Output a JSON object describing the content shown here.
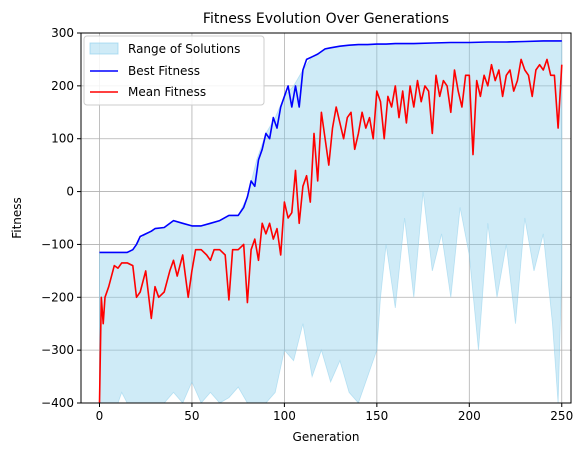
{
  "chart_data": {
    "type": "line",
    "title": "Fitness Evolution Over Generations",
    "xlabel": "Generation",
    "ylabel": "Fitness",
    "xlim": [
      -10,
      255
    ],
    "ylim": [
      -400,
      300
    ],
    "xticks": [
      0,
      50,
      100,
      150,
      200,
      250
    ],
    "yticks": [
      -400,
      -300,
      -200,
      -100,
      0,
      100,
      200,
      300
    ],
    "grid": true,
    "legend_position": "top-left",
    "legend": [
      "Range of Solutions",
      "Best Fitness",
      "Mean Fitness"
    ],
    "colors": {
      "range_fill": "#87CEEB",
      "range_edge": "#87CEEB",
      "best": "#0000ff",
      "mean": "#ff0000",
      "grid": "#b0b0b0"
    },
    "series": [
      {
        "name": "Best Fitness",
        "kind": "line",
        "x": [
          0,
          5,
          10,
          15,
          18,
          20,
          22,
          25,
          28,
          30,
          35,
          40,
          45,
          50,
          55,
          60,
          65,
          70,
          75,
          78,
          80,
          82,
          84,
          86,
          88,
          90,
          92,
          94,
          96,
          98,
          100,
          102,
          104,
          106,
          108,
          110,
          112,
          115,
          118,
          120,
          122,
          125,
          130,
          135,
          140,
          145,
          150,
          155,
          160,
          170,
          180,
          190,
          200,
          210,
          220,
          230,
          240,
          250
        ],
        "y": [
          -115,
          -115,
          -115,
          -115,
          -110,
          -100,
          -85,
          -80,
          -75,
          -70,
          -68,
          -55,
          -60,
          -65,
          -65,
          -60,
          -55,
          -45,
          -45,
          -30,
          -10,
          20,
          10,
          60,
          80,
          110,
          100,
          140,
          120,
          160,
          180,
          200,
          160,
          200,
          160,
          230,
          250,
          255,
          260,
          265,
          270,
          272,
          275,
          277,
          278,
          278,
          279,
          279,
          280,
          280,
          281,
          282,
          282,
          283,
          283,
          284,
          285,
          285
        ]
      },
      {
        "name": "Mean Fitness",
        "kind": "line",
        "x": [
          0,
          1,
          2,
          3,
          5,
          8,
          10,
          12,
          15,
          18,
          20,
          22,
          25,
          28,
          30,
          32,
          35,
          38,
          40,
          42,
          45,
          48,
          50,
          52,
          55,
          58,
          60,
          62,
          65,
          68,
          70,
          72,
          75,
          78,
          80,
          82,
          84,
          86,
          88,
          90,
          92,
          94,
          96,
          98,
          100,
          102,
          104,
          106,
          108,
          110,
          112,
          114,
          116,
          118,
          120,
          122,
          124,
          126,
          128,
          130,
          132,
          134,
          136,
          138,
          140,
          142,
          144,
          146,
          148,
          150,
          152,
          154,
          156,
          158,
          160,
          162,
          164,
          166,
          168,
          170,
          172,
          174,
          176,
          178,
          180,
          182,
          184,
          186,
          188,
          190,
          192,
          194,
          196,
          198,
          200,
          202,
          204,
          206,
          208,
          210,
          212,
          214,
          216,
          218,
          220,
          222,
          224,
          226,
          228,
          230,
          232,
          234,
          236,
          238,
          240,
          242,
          244,
          246,
          248,
          250
        ],
        "y": [
          -400,
          -200,
          -250,
          -200,
          -180,
          -140,
          -145,
          -135,
          -135,
          -140,
          -200,
          -190,
          -150,
          -240,
          -180,
          -200,
          -190,
          -150,
          -130,
          -160,
          -120,
          -200,
          -150,
          -110,
          -110,
          -120,
          -130,
          -110,
          -110,
          -120,
          -205,
          -110,
          -110,
          -100,
          -210,
          -110,
          -90,
          -130,
          -60,
          -80,
          -60,
          -90,
          -70,
          -120,
          -20,
          -50,
          -40,
          40,
          -60,
          10,
          30,
          -20,
          110,
          20,
          150,
          100,
          50,
          120,
          160,
          130,
          100,
          140,
          150,
          80,
          110,
          150,
          120,
          140,
          100,
          190,
          170,
          100,
          180,
          160,
          200,
          140,
          190,
          130,
          200,
          160,
          210,
          170,
          200,
          190,
          110,
          220,
          180,
          210,
          200,
          150,
          230,
          190,
          160,
          220,
          220,
          70,
          210,
          180,
          220,
          200,
          240,
          210,
          230,
          180,
          220,
          230,
          190,
          210,
          250,
          230,
          220,
          180,
          230,
          240,
          230,
          250,
          220,
          220,
          120,
          240
        ]
      },
      {
        "name": "Range of Solutions",
        "kind": "band",
        "x": [
          0,
          5,
          10,
          12,
          15,
          18,
          20,
          25,
          30,
          35,
          40,
          45,
          50,
          55,
          60,
          65,
          70,
          75,
          80,
          85,
          90,
          95,
          100,
          105,
          110,
          115,
          120,
          125,
          130,
          135,
          140,
          145,
          150,
          152,
          155,
          160,
          165,
          170,
          175,
          180,
          185,
          190,
          195,
          200,
          205,
          210,
          215,
          220,
          225,
          230,
          235,
          240,
          245,
          248,
          250
        ],
        "lower": [
          -400,
          -400,
          -400,
          -380,
          -400,
          -400,
          -400,
          -400,
          -400,
          -400,
          -380,
          -400,
          -360,
          -400,
          -380,
          -400,
          -390,
          -370,
          -400,
          -400,
          -400,
          -380,
          -300,
          -320,
          -250,
          -350,
          -300,
          -360,
          -320,
          -380,
          -400,
          -350,
          -300,
          -200,
          -100,
          -220,
          -50,
          -200,
          0,
          -150,
          -80,
          -200,
          -30,
          -120,
          -300,
          -60,
          -200,
          -100,
          -250,
          -50,
          -150,
          -80,
          -250,
          -400,
          -150
        ],
        "upper": [
          -115,
          -115,
          -115,
          -115,
          -115,
          -110,
          -100,
          -80,
          -70,
          -68,
          -55,
          -60,
          -65,
          -65,
          -60,
          -55,
          -45,
          -45,
          -10,
          60,
          110,
          140,
          180,
          200,
          230,
          255,
          265,
          272,
          275,
          277,
          278,
          278,
          279,
          279,
          279,
          280,
          280,
          280,
          281,
          281,
          282,
          282,
          282,
          282,
          283,
          283,
          283,
          283,
          284,
          284,
          284,
          285,
          285,
          285,
          285
        ]
      }
    ]
  }
}
